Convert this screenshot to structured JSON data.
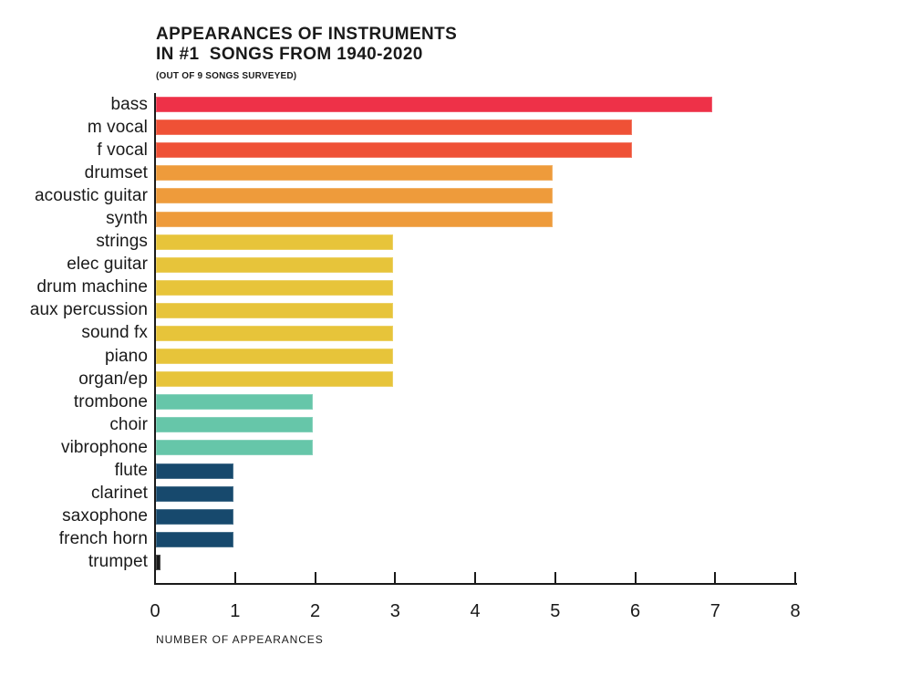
{
  "header": {
    "title_line1": "APPEARANCES OF INSTRUMENTS",
    "title_line2": "IN #1  SONGS FROM 1940-2020",
    "subtitle": "(OUT OF 9 SONGS SURVEYED)"
  },
  "chart_data": {
    "type": "bar",
    "orientation": "horizontal",
    "title": "APPEARANCES OF INSTRUMENTS IN #1 SONGS FROM 1940-2020",
    "subtitle": "(OUT OF 9 SONGS SURVEYED)",
    "xlabel": "NUMBER OF APPEARANCES",
    "ylabel": "",
    "xlim": [
      0,
      8
    ],
    "xticks": [
      0,
      1,
      2,
      3,
      4,
      5,
      6,
      7,
      8
    ],
    "grid": false,
    "legend": false,
    "categories": [
      "bass",
      "m vocal",
      "f vocal",
      "drumset",
      "acoustic guitar",
      "synth",
      "strings",
      "elec guitar",
      "drum machine",
      "aux percussion",
      "sound fx",
      "piano",
      "organ/ep",
      "trombone",
      "choir",
      "vibrophone",
      "flute",
      "clarinet",
      "saxophone",
      "french horn",
      "trumpet"
    ],
    "values": [
      7,
      6,
      6,
      5,
      5,
      5,
      3,
      3,
      3,
      3,
      3,
      3,
      3,
      2,
      2,
      2,
      1,
      1,
      1,
      1,
      0
    ],
    "bar_colors": [
      "#EE3148",
      "#EF5136",
      "#EF5136",
      "#EE9B3B",
      "#EE9B3B",
      "#EE9B3B",
      "#E7C43A",
      "#E7C43A",
      "#E7C43A",
      "#E7C43A",
      "#E7C43A",
      "#E7C43A",
      "#E7C43A",
      "#66C6A9",
      "#66C6A9",
      "#66C6A9",
      "#17496D",
      "#17496D",
      "#17496D",
      "#17496D",
      "#1B1B1B"
    ]
  },
  "colors": {
    "background": "#FFFFFF",
    "text": "#1A1A1A",
    "axis": "#1A1A1A"
  }
}
